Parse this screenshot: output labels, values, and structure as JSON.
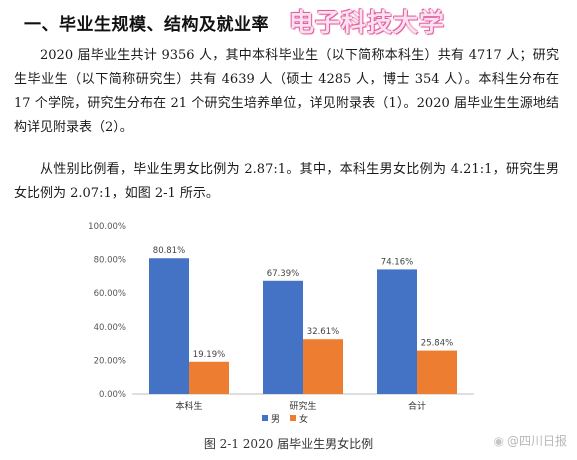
{
  "heading": "一、毕业生规模、结构及就业率",
  "brand": "电子科技大学",
  "paragraphs": {
    "p1": "2020 届毕业生共计 9356 人，其中本科毕业生（以下简称本科生）共有 4717 人；研究生毕业生（以下简称研究生）共有 4639 人（硕士 4285 人，博士 354 人）。本科生分布在 17 个学院，研究生分布在 21 个研究生培养单位，详见附录表（1）。2020 届毕业生生源地结构详见附录表（2）。",
    "p2": "从性别比例看，毕业生男女比例为 2.87:1。其中，本科生男女比例为 4.21:1，研究生男女比例为 2.07:1，如图 2-1 所示。"
  },
  "caption": "图 2-1  2020 届毕业生男女比例",
  "watermark": "@四川日报",
  "chart_data": {
    "type": "bar",
    "categories": [
      "本科生",
      "研究生",
      "合计"
    ],
    "series": [
      {
        "name": "男",
        "values": [
          80.81,
          67.39,
          74.16
        ],
        "labels": [
          "80.81%",
          "67.39%",
          "74.16%"
        ],
        "color": "#4472c4"
      },
      {
        "name": "女",
        "values": [
          19.19,
          32.61,
          25.84
        ],
        "labels": [
          "19.19%",
          "32.61%",
          "25.84%"
        ],
        "color": "#ed7d31"
      }
    ],
    "ylim": [
      0,
      100
    ],
    "yticks": [
      "0.00%",
      "20.00%",
      "40.00%",
      "60.00%",
      "80.00%",
      "100.00%"
    ],
    "grid": false,
    "legend": "bottom"
  }
}
